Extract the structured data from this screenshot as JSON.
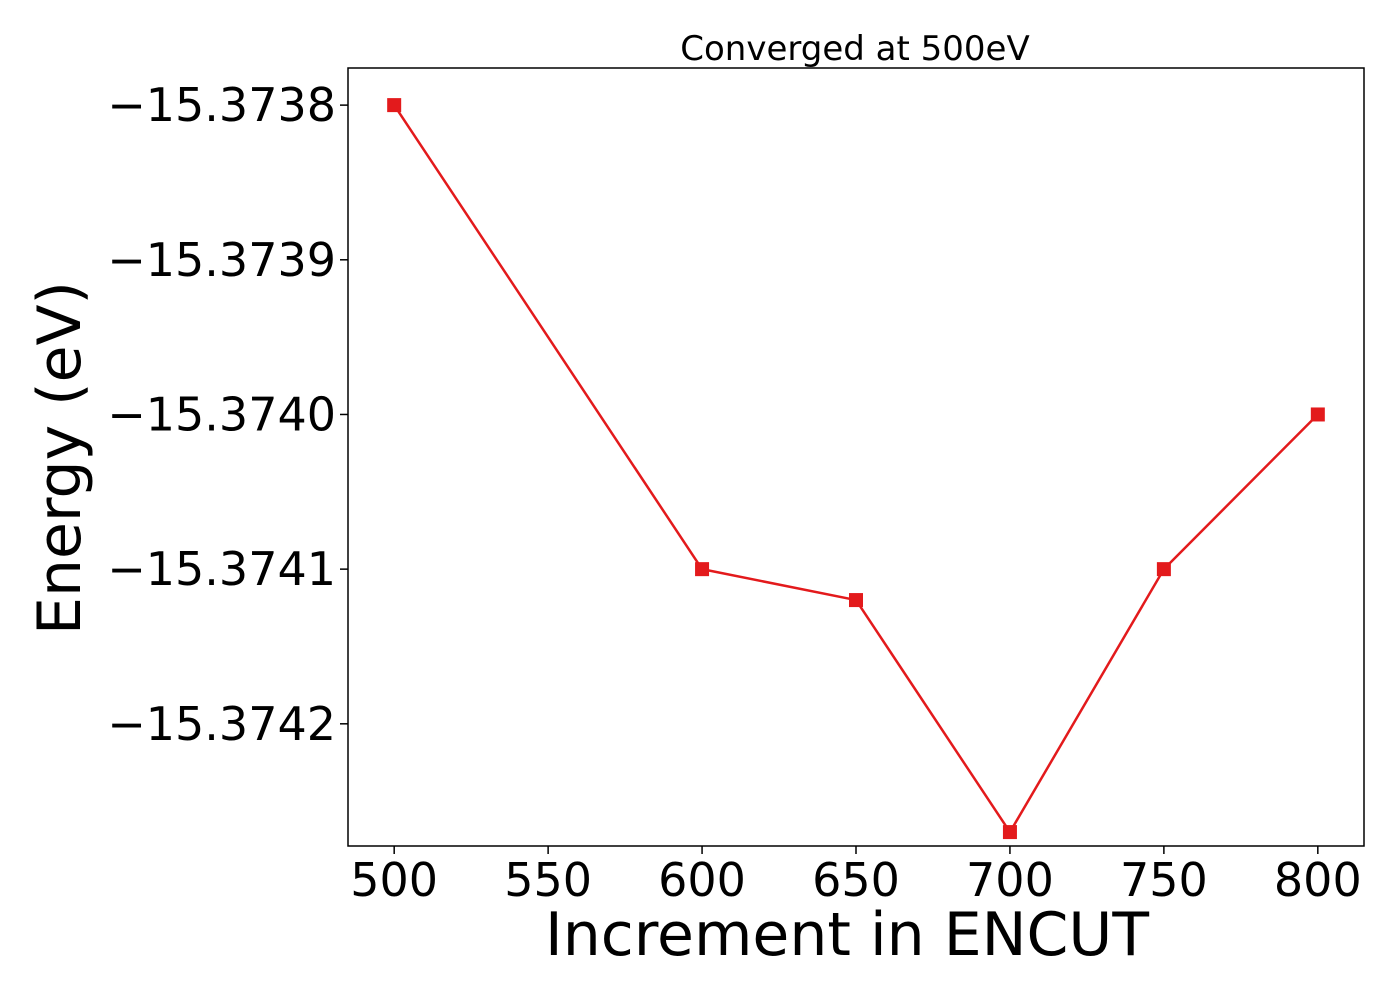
{
  "chart_data": {
    "type": "line",
    "title": "Converged at 500eV",
    "xlabel": "Increment in ENCUT",
    "ylabel": "Energy (eV)",
    "x": [
      500,
      600,
      650,
      700,
      750,
      800
    ],
    "series": [
      {
        "values": [
          -15.3738,
          -15.3741,
          -15.37412,
          -15.37427,
          -15.3741,
          -15.374
        ],
        "color": "#e31a1c",
        "marker": "square"
      }
    ],
    "xticks": [
      500,
      550,
      600,
      650,
      700,
      750,
      800
    ],
    "xtick_labels": [
      "500",
      "550",
      "600",
      "650",
      "700",
      "750",
      "800"
    ],
    "yticks": [
      -15.3738,
      -15.3739,
      -15.374,
      -15.3741,
      -15.3742
    ],
    "ytick_labels": [
      "−15.3738",
      "−15.3739",
      "−15.3740",
      "−15.3741",
      "−15.3742"
    ],
    "xlim": [
      485,
      815
    ],
    "ylim": [
      -15.374279,
      -15.373776
    ],
    "grid": false,
    "legend": "none"
  }
}
